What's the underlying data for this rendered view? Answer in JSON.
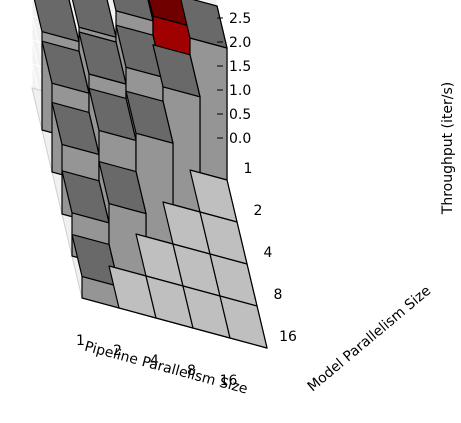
{
  "chart_data": {
    "type": "bar3d",
    "title": "",
    "xlabel": "Pipeline Parallelism Size",
    "ylabel": "Model Parallelism Size",
    "zlabel": "Throughput (iter/s)",
    "x_categories": [
      "1",
      "2",
      "4",
      "8",
      "16"
    ],
    "y_categories": [
      "1",
      "2",
      "4",
      "8",
      "16"
    ],
    "z_ticks": [
      "0.0",
      "0.5",
      "1.0",
      "1.5",
      "2.0",
      "2.5"
    ],
    "zlim": [
      0,
      3.1
    ],
    "grid": true,
    "highlight_color": "#cc0000",
    "bar_color": "#bfbfbf",
    "bars": [
      {
        "x": "1",
        "y": "1",
        "z": 2.05
      },
      {
        "x": "1",
        "y": "2",
        "z": 1.85
      },
      {
        "x": "1",
        "y": "4",
        "z": 1.45
      },
      {
        "x": "1",
        "y": "8",
        "z": 0.9
      },
      {
        "x": "1",
        "y": "16",
        "z": 0.45
      },
      {
        "x": "2",
        "y": "1",
        "z": 2.35
      },
      {
        "x": "2",
        "y": "2",
        "z": 2.25
      },
      {
        "x": "2",
        "y": "4",
        "z": 1.95
      },
      {
        "x": "2",
        "y": "8",
        "z": 1.3
      },
      {
        "x": "2",
        "y": "16",
        "z": 0
      },
      {
        "x": "4",
        "y": "1",
        "z": 2.9
      },
      {
        "x": "4",
        "y": "2",
        "z": 2.6
      },
      {
        "x": "4",
        "y": "4",
        "z": 2.1
      },
      {
        "x": "4",
        "y": "8",
        "z": 0
      },
      {
        "x": "4",
        "y": "16",
        "z": 0
      },
      {
        "x": "8",
        "y": "1",
        "z": 3.0,
        "highlight": true
      },
      {
        "x": "8",
        "y": "2",
        "z": 2.4
      },
      {
        "x": "8",
        "y": "4",
        "z": 0
      },
      {
        "x": "8",
        "y": "8",
        "z": 0
      },
      {
        "x": "8",
        "y": "16",
        "z": 0
      },
      {
        "x": "16",
        "y": "1",
        "z": 2.75
      },
      {
        "x": "16",
        "y": "2",
        "z": 0
      },
      {
        "x": "16",
        "y": "4",
        "z": 0
      },
      {
        "x": "16",
        "y": "8",
        "z": 0
      },
      {
        "x": "16",
        "y": "16",
        "z": 0
      }
    ]
  }
}
